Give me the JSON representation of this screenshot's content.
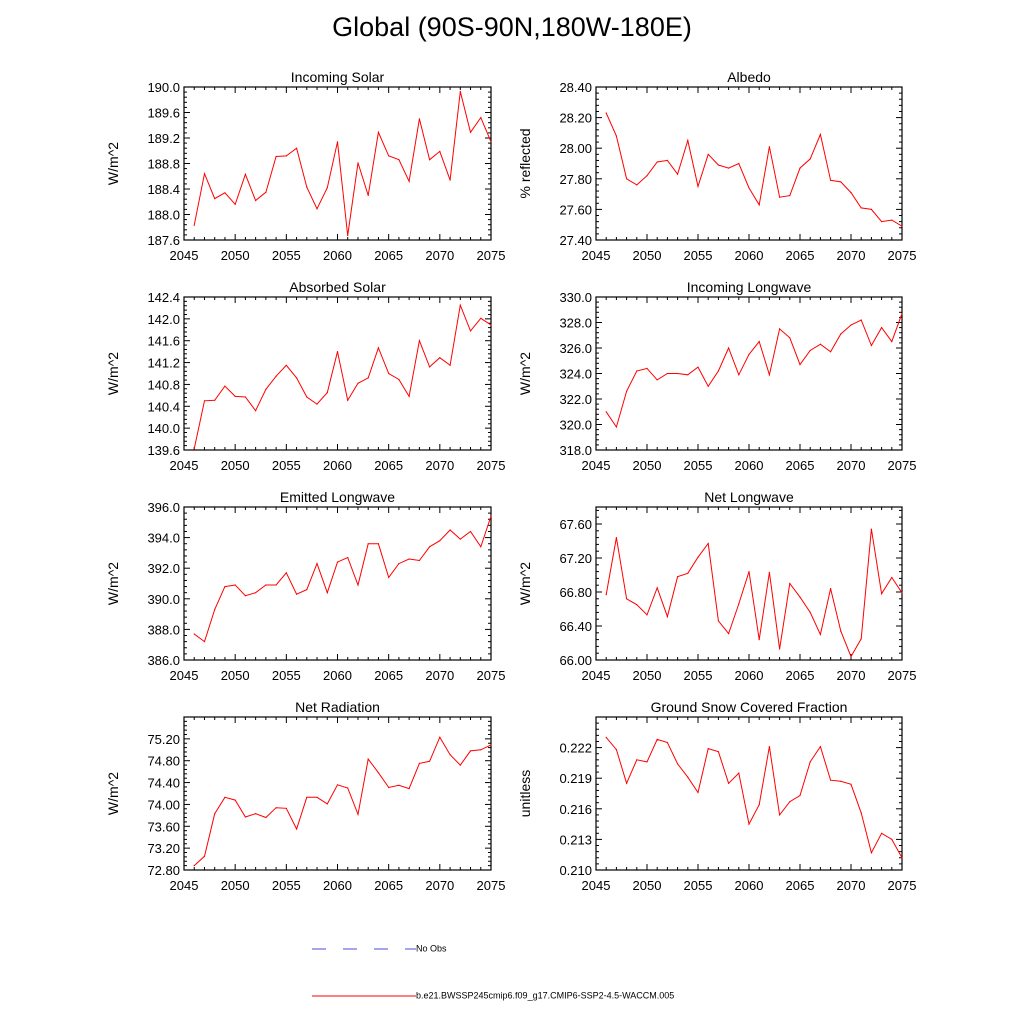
{
  "page": {
    "title": "Global (90S-90N,180W-180E)"
  },
  "legend": {
    "entries": [
      {
        "label": "No Obs",
        "color": "#4b4bd6",
        "dash": true
      },
      {
        "label": "b.e21.BWSSP245cmip6.f09_g17.CMIP6-SSP2-4.5-WACCM.005",
        "color": "#ff0000",
        "dash": false
      }
    ]
  },
  "chart_data": [
    {
      "type": "line",
      "title": "Incoming Solar",
      "xlabel": "",
      "ylabel": "W/m^2",
      "xlim": [
        2045,
        2075
      ],
      "ylim": [
        187.6,
        190.0
      ],
      "xticks": [
        2045,
        2050,
        2055,
        2060,
        2065,
        2070,
        2075
      ],
      "yticks": [
        "187.6",
        "188.0",
        "188.4",
        "188.8",
        "189.2",
        "189.6",
        "190.0"
      ],
      "x": [
        2046,
        2047,
        2048,
        2049,
        2050,
        2051,
        2052,
        2053,
        2054,
        2055,
        2056,
        2057,
        2058,
        2059,
        2060,
        2061,
        2062,
        2063,
        2064,
        2065,
        2066,
        2067,
        2068,
        2069,
        2070,
        2071,
        2072,
        2073,
        2074,
        2075
      ],
      "series": [
        {
          "name": "b.e21.BWSSP245cmip6.f09_g17.CMIP6-SSP2-4.5-WACCM.005",
          "color": "#ff0000",
          "values": [
            187.83,
            188.64,
            188.25,
            188.34,
            188.16,
            188.63,
            188.22,
            188.35,
            188.91,
            188.92,
            189.04,
            188.43,
            188.09,
            188.42,
            189.14,
            187.67,
            188.81,
            188.3,
            189.29,
            188.92,
            188.86,
            188.52,
            189.5,
            188.86,
            188.99,
            188.54,
            189.93,
            189.29,
            189.52,
            189.14
          ]
        }
      ]
    },
    {
      "type": "line",
      "title": "Albedo",
      "xlabel": "",
      "ylabel": "% reflected",
      "xlim": [
        2045,
        2075
      ],
      "ylim": [
        27.4,
        28.4
      ],
      "xticks": [
        2045,
        2050,
        2055,
        2060,
        2065,
        2070,
        2075
      ],
      "yticks": [
        "27.40",
        "27.60",
        "27.80",
        "28.00",
        "28.20",
        "28.40"
      ],
      "x": [
        2046,
        2047,
        2048,
        2049,
        2050,
        2051,
        2052,
        2053,
        2054,
        2055,
        2056,
        2057,
        2058,
        2059,
        2060,
        2061,
        2062,
        2063,
        2064,
        2065,
        2066,
        2067,
        2068,
        2069,
        2070,
        2071,
        2072,
        2073,
        2074,
        2075
      ],
      "series": [
        {
          "name": "b.e21.BWSSP245cmip6.f09_g17.CMIP6-SSP2-4.5-WACCM.005",
          "color": "#ff0000",
          "values": [
            28.23,
            28.08,
            27.8,
            27.76,
            27.82,
            27.91,
            27.92,
            27.83,
            28.05,
            27.75,
            27.96,
            27.89,
            27.87,
            27.9,
            27.74,
            27.63,
            28.01,
            27.68,
            27.69,
            27.87,
            27.93,
            28.09,
            27.79,
            27.78,
            27.71,
            27.61,
            27.6,
            27.52,
            27.53,
            27.49
          ]
        }
      ]
    },
    {
      "type": "line",
      "title": "Absorbed Solar",
      "xlabel": "",
      "ylabel": "W/m^2",
      "xlim": [
        2045,
        2075
      ],
      "ylim": [
        139.6,
        142.4
      ],
      "xticks": [
        2045,
        2050,
        2055,
        2060,
        2065,
        2070,
        2075
      ],
      "yticks": [
        "139.6",
        "140.0",
        "140.4",
        "140.8",
        "141.2",
        "141.6",
        "142.0",
        "142.4"
      ],
      "x": [
        2046,
        2047,
        2048,
        2049,
        2050,
        2051,
        2052,
        2053,
        2054,
        2055,
        2056,
        2057,
        2058,
        2059,
        2060,
        2061,
        2062,
        2063,
        2064,
        2065,
        2066,
        2067,
        2068,
        2069,
        2070,
        2071,
        2072,
        2073,
        2074,
        2075
      ],
      "series": [
        {
          "name": "b.e21.BWSSP245cmip6.f09_g17.CMIP6-SSP2-4.5-WACCM.005",
          "color": "#ff0000",
          "values": [
            139.62,
            140.5,
            140.51,
            140.77,
            140.58,
            140.57,
            140.32,
            140.71,
            140.95,
            141.15,
            140.92,
            140.57,
            140.44,
            140.65,
            141.4,
            140.51,
            140.82,
            140.92,
            141.47,
            141.0,
            140.89,
            140.58,
            141.6,
            141.12,
            141.29,
            141.15,
            142.25,
            141.78,
            142.01,
            141.89
          ]
        }
      ]
    },
    {
      "type": "line",
      "title": "Incoming Longwave",
      "xlabel": "",
      "ylabel": "W/m^2",
      "xlim": [
        2045,
        2075
      ],
      "ylim": [
        318.0,
        330.0
      ],
      "xticks": [
        2045,
        2050,
        2055,
        2060,
        2065,
        2070,
        2075
      ],
      "yticks": [
        "318.0",
        "320.0",
        "322.0",
        "324.0",
        "326.0",
        "328.0",
        "330.0"
      ],
      "x": [
        2046,
        2047,
        2048,
        2049,
        2050,
        2051,
        2052,
        2053,
        2054,
        2055,
        2056,
        2057,
        2058,
        2059,
        2060,
        2061,
        2062,
        2063,
        2064,
        2065,
        2066,
        2067,
        2068,
        2069,
        2070,
        2071,
        2072,
        2073,
        2074,
        2075
      ],
      "series": [
        {
          "name": "b.e21.BWSSP245cmip6.f09_g17.CMIP6-SSP2-4.5-WACCM.005",
          "color": "#ff0000",
          "values": [
            321.0,
            319.8,
            322.6,
            324.2,
            324.4,
            323.5,
            324.0,
            324.0,
            323.9,
            324.5,
            323.0,
            324.2,
            326.0,
            323.9,
            325.5,
            326.5,
            323.9,
            327.5,
            326.8,
            324.7,
            325.8,
            326.3,
            325.7,
            327.1,
            327.8,
            328.2,
            326.2,
            327.6,
            326.5,
            328.7
          ]
        }
      ]
    },
    {
      "type": "line",
      "title": "Emitted Longwave",
      "xlabel": "",
      "ylabel": "W/m^2",
      "xlim": [
        2045,
        2075
      ],
      "ylim": [
        386.0,
        396.0
      ],
      "xticks": [
        2045,
        2050,
        2055,
        2060,
        2065,
        2070,
        2075
      ],
      "yticks": [
        "386.0",
        "388.0",
        "390.0",
        "392.0",
        "394.0",
        "396.0"
      ],
      "x": [
        2046,
        2047,
        2048,
        2049,
        2050,
        2051,
        2052,
        2053,
        2054,
        2055,
        2056,
        2057,
        2058,
        2059,
        2060,
        2061,
        2062,
        2063,
        2064,
        2065,
        2066,
        2067,
        2068,
        2069,
        2070,
        2071,
        2072,
        2073,
        2074,
        2075
      ],
      "series": [
        {
          "name": "b.e21.BWSSP245cmip6.f09_g17.CMIP6-SSP2-4.5-WACCM.005",
          "color": "#ff0000",
          "values": [
            387.7,
            387.2,
            389.3,
            390.8,
            390.9,
            390.2,
            390.4,
            390.9,
            390.9,
            391.7,
            390.3,
            390.6,
            392.3,
            390.4,
            392.4,
            392.7,
            390.9,
            393.6,
            393.6,
            391.4,
            392.3,
            392.6,
            392.5,
            393.4,
            393.8,
            394.5,
            393.9,
            394.4,
            393.4,
            395.4
          ]
        }
      ]
    },
    {
      "type": "line",
      "title": "Net Longwave",
      "xlabel": "",
      "ylabel": "W/m^2",
      "xlim": [
        2045,
        2075
      ],
      "ylim": [
        66.0,
        67.8
      ],
      "xticks": [
        2045,
        2050,
        2055,
        2060,
        2065,
        2070,
        2075
      ],
      "yticks": [
        "66.00",
        "66.40",
        "66.80",
        "67.20",
        "67.60"
      ],
      "x": [
        2046,
        2047,
        2048,
        2049,
        2050,
        2051,
        2052,
        2053,
        2054,
        2055,
        2056,
        2057,
        2058,
        2059,
        2060,
        2061,
        2062,
        2063,
        2064,
        2065,
        2066,
        2067,
        2068,
        2069,
        2070,
        2071,
        2072,
        2073,
        2074,
        2075
      ],
      "series": [
        {
          "name": "b.e21.BWSSP245cmip6.f09_g17.CMIP6-SSP2-4.5-WACCM.005",
          "color": "#ff0000",
          "values": [
            66.77,
            67.44,
            66.72,
            66.65,
            66.53,
            66.85,
            66.51,
            66.98,
            67.02,
            67.21,
            67.37,
            66.46,
            66.31,
            66.66,
            67.04,
            66.24,
            67.03,
            66.13,
            66.9,
            66.74,
            66.56,
            66.3,
            66.84,
            66.34,
            66.04,
            66.25,
            67.54,
            66.78,
            66.97,
            66.79
          ]
        }
      ]
    },
    {
      "type": "line",
      "title": "Net Radiation",
      "xlabel": "",
      "ylabel": "W/m^2",
      "xlim": [
        2045,
        2075
      ],
      "ylim": [
        72.8,
        75.6
      ],
      "xticks": [
        2045,
        2050,
        2055,
        2060,
        2065,
        2070,
        2075
      ],
      "yticks": [
        "72.80",
        "73.20",
        "73.60",
        "74.00",
        "74.40",
        "74.80",
        "75.20"
      ],
      "x": [
        2046,
        2047,
        2048,
        2049,
        2050,
        2051,
        2052,
        2053,
        2054,
        2055,
        2056,
        2057,
        2058,
        2059,
        2060,
        2061,
        2062,
        2063,
        2064,
        2065,
        2066,
        2067,
        2068,
        2069,
        2070,
        2071,
        2072,
        2073,
        2074,
        2075
      ],
      "series": [
        {
          "name": "b.e21.BWSSP245cmip6.f09_g17.CMIP6-SSP2-4.5-WACCM.005",
          "color": "#ff0000",
          "values": [
            72.88,
            73.05,
            73.83,
            74.13,
            74.08,
            73.77,
            73.83,
            73.76,
            73.94,
            73.93,
            73.55,
            74.13,
            74.13,
            74.01,
            74.36,
            74.3,
            73.82,
            74.83,
            74.58,
            74.31,
            74.35,
            74.29,
            74.75,
            74.79,
            75.23,
            74.91,
            74.72,
            74.98,
            75.0,
            75.09
          ]
        }
      ]
    },
    {
      "type": "line",
      "title": "Ground Snow Covered Fraction",
      "xlabel": "",
      "ylabel": "unitless",
      "xlim": [
        2045,
        2075
      ],
      "ylim": [
        0.21,
        0.225
      ],
      "xticks": [
        2045,
        2050,
        2055,
        2060,
        2065,
        2070,
        2075
      ],
      "yticks": [
        "0.210",
        "0.213",
        "0.216",
        "0.219",
        "0.222"
      ],
      "x": [
        2046,
        2047,
        2048,
        2049,
        2050,
        2051,
        2052,
        2053,
        2054,
        2055,
        2056,
        2057,
        2058,
        2059,
        2060,
        2061,
        2062,
        2063,
        2064,
        2065,
        2066,
        2067,
        2068,
        2069,
        2070,
        2071,
        2072,
        2073,
        2074,
        2075
      ],
      "series": [
        {
          "name": "b.e21.BWSSP245cmip6.f09_g17.CMIP6-SSP2-4.5-WACCM.005",
          "color": "#ff0000",
          "values": [
            0.223,
            0.2218,
            0.2185,
            0.2208,
            0.2206,
            0.2228,
            0.2225,
            0.2204,
            0.2191,
            0.2176,
            0.2219,
            0.2216,
            0.2185,
            0.2195,
            0.2145,
            0.2164,
            0.2221,
            0.2154,
            0.2167,
            0.2173,
            0.2206,
            0.2221,
            0.2188,
            0.2187,
            0.2184,
            0.2156,
            0.2117,
            0.2136,
            0.213,
            0.2112
          ]
        }
      ]
    }
  ]
}
